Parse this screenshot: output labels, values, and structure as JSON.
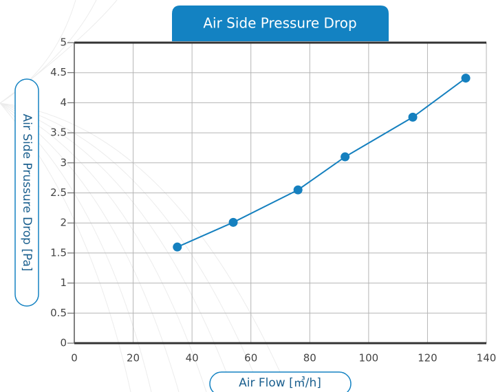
{
  "chart_data": {
    "type": "line",
    "title": "Air Side Pressure Drop",
    "x_label": "Air Flow [㎥/h]",
    "y_label": "Air Side Prussure Drop [Pa]",
    "series": [
      {
        "name": "Air Side Pressure Drop",
        "color": "#1580bf",
        "x": [
          35,
          54,
          76,
          92,
          115,
          133
        ],
        "values": [
          1.6,
          2.01,
          2.55,
          3.1,
          3.76,
          4.41
        ]
      }
    ],
    "xlim": [
      0,
      140
    ],
    "xticks": [
      0,
      20,
      40,
      60,
      80,
      100,
      120,
      140
    ],
    "ylim": [
      0,
      5
    ],
    "yticks": [
      0,
      0.5,
      1,
      1.5,
      2,
      2.5,
      3,
      3.5,
      4,
      4.5,
      5
    ],
    "grid": true
  }
}
